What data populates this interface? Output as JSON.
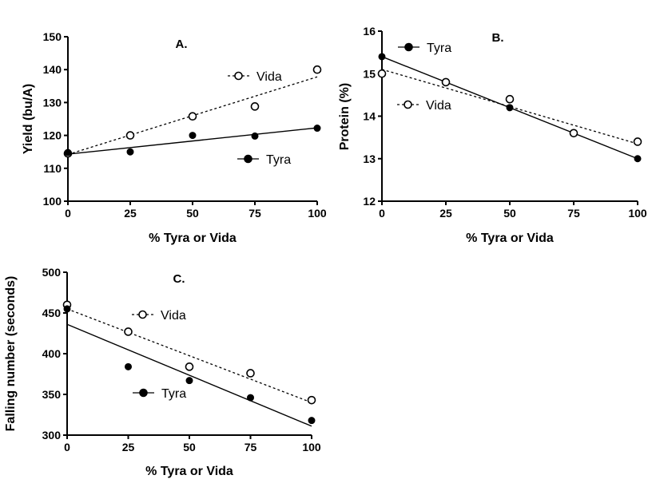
{
  "chart_data": [
    {
      "type": "scatter",
      "title": "A.",
      "xlabel": "% Tyra or Vida",
      "ylabel": "Yield (bu/A)",
      "xlim": [
        0,
        100
      ],
      "ylim": [
        100,
        150
      ],
      "xticks": [
        0,
        25,
        50,
        75,
        100
      ],
      "yticks": [
        100,
        110,
        120,
        130,
        140,
        150
      ],
      "grid": false,
      "series": [
        {
          "name": "Vida",
          "marker": "open-circle",
          "line": "dashed",
          "x": [
            0,
            25,
            50,
            75,
            100
          ],
          "y": [
            114.5,
            120,
            125.8,
            128.8,
            140
          ],
          "fit": [
            114.2,
            137.8
          ]
        },
        {
          "name": "Tyra",
          "marker": "filled-circle",
          "line": "solid",
          "x": [
            0,
            25,
            50,
            75,
            100
          ],
          "y": [
            114.8,
            115,
            120,
            119.8,
            122.2
          ],
          "fit": [
            114.3,
            122.3
          ]
        }
      ]
    },
    {
      "type": "scatter",
      "title": "B.",
      "xlabel": "% Tyra or Vida",
      "ylabel": "Protein (%)",
      "xlim": [
        0,
        100
      ],
      "ylim": [
        12,
        16
      ],
      "xticks": [
        0,
        25,
        50,
        75,
        100
      ],
      "yticks": [
        12,
        13,
        14,
        15,
        16
      ],
      "grid": false,
      "series": [
        {
          "name": "Tyra",
          "marker": "filled-circle",
          "line": "solid",
          "x": [
            0,
            25,
            50,
            75,
            100
          ],
          "y": [
            15.4,
            14.8,
            14.2,
            13.6,
            13.0
          ],
          "fit": [
            15.4,
            13.0
          ]
        },
        {
          "name": "Vida",
          "marker": "open-circle",
          "line": "dashed",
          "x": [
            0,
            25,
            50,
            75,
            100
          ],
          "y": [
            15.0,
            14.8,
            14.4,
            13.6,
            13.4
          ],
          "fit": [
            15.1,
            13.35
          ]
        }
      ]
    },
    {
      "type": "scatter",
      "title": "C.",
      "xlabel": "% Tyra or Vida",
      "ylabel": "Falling number  (seconds)",
      "xlim": [
        0,
        100
      ],
      "ylim": [
        300,
        500
      ],
      "xticks": [
        0,
        25,
        50,
        75,
        100
      ],
      "yticks": [
        300,
        350,
        400,
        450,
        500
      ],
      "grid": false,
      "series": [
        {
          "name": "Vida",
          "marker": "open-circle",
          "line": "dashed",
          "x": [
            0,
            25,
            50,
            75,
            100
          ],
          "y": [
            460,
            427,
            384,
            376,
            343
          ],
          "fit": [
            455,
            340
          ]
        },
        {
          "name": "Tyra",
          "marker": "filled-circle",
          "line": "solid",
          "x": [
            0,
            25,
            50,
            75,
            100
          ],
          "y": [
            455,
            384,
            367,
            346,
            318
          ],
          "fit": [
            436,
            311
          ]
        }
      ]
    }
  ]
}
